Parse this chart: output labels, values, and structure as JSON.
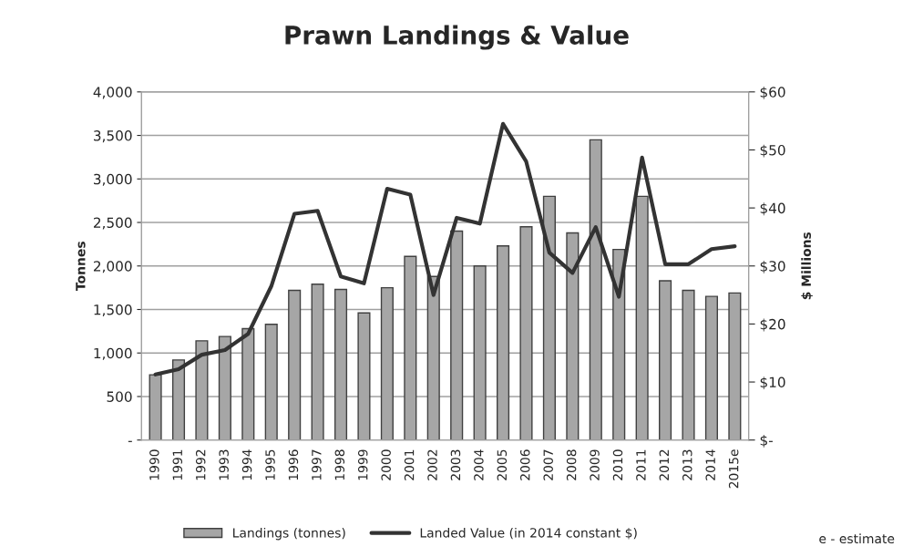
{
  "chart_data": {
    "type": "bar",
    "title": "Prawn Landings & Value",
    "ylabel": "Tonnes",
    "y2label": "$ Millions",
    "categories": [
      "1990",
      "1991",
      "1992",
      "1993",
      "1994",
      "1995",
      "1996",
      "1997",
      "1998",
      "1999",
      "2000",
      "2001",
      "2002",
      "2003",
      "2004",
      "2005",
      "2006",
      "2007",
      "2008",
      "2009",
      "2010",
      "2011",
      "2012",
      "2013",
      "2014",
      "2015e"
    ],
    "series": [
      {
        "name": "Landings (tonnes)",
        "color": "#a6a6a6",
        "values": [
          750,
          920,
          1140,
          1190,
          1280,
          1330,
          1720,
          1790,
          1730,
          1460,
          1750,
          2110,
          1880,
          2400,
          2000,
          2230,
          2450,
          2800,
          2380,
          3450,
          2190,
          2800,
          1830,
          1720,
          1650,
          1690
        ]
      },
      {
        "name": "Landed Value (in 2014 constant $)",
        "type": "line",
        "axis": "y2",
        "color": "#333333",
        "values": [
          11.3,
          12.2,
          14.7,
          15.5,
          18.3,
          26.5,
          39,
          39.5,
          28.2,
          27,
          43.3,
          42.3,
          25,
          38.3,
          37.3,
          54.5,
          48,
          32.3,
          28.8,
          36.7,
          24.7,
          48.7,
          30.3,
          30.3,
          32.9,
          33.4
        ]
      }
    ],
    "ylim": [
      0,
      4000
    ],
    "yticks": [
      {
        "value": 0,
        "label": "-"
      },
      {
        "value": 500,
        "label": "500"
      },
      {
        "value": 1000,
        "label": "1,000"
      },
      {
        "value": 1500,
        "label": "1,500"
      },
      {
        "value": 2000,
        "label": "2,000"
      },
      {
        "value": 2500,
        "label": "2,500"
      },
      {
        "value": 3000,
        "label": "3,000"
      },
      {
        "value": 3500,
        "label": "3,500"
      },
      {
        "value": 4000,
        "label": "4,000"
      }
    ],
    "y2lim": [
      0,
      60
    ],
    "y2ticks": [
      {
        "value": 0,
        "label": "$-"
      },
      {
        "value": 10,
        "label": "$10"
      },
      {
        "value": 20,
        "label": "$20"
      },
      {
        "value": 30,
        "label": "$30"
      },
      {
        "value": 40,
        "label": "$40"
      },
      {
        "value": 50,
        "label": "$50"
      },
      {
        "value": 60,
        "label": "$60"
      }
    ],
    "grid": "y",
    "legend": "bottom",
    "marker": "none",
    "annotations": [
      "e - estimate"
    ]
  }
}
